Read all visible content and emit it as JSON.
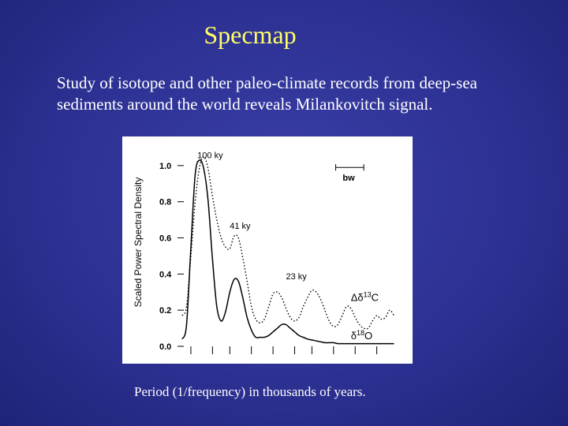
{
  "slide": {
    "title": "Specmap",
    "subtitle": "Study of isotope and other paleo-climate records from deep-sea sediments around the world reveals Milankovitch signal.",
    "x_caption": "Period (1/frequency) in thousands of years."
  },
  "chart_data": {
    "type": "line",
    "ylabel": "Scaled Power Spectral Density",
    "xlabel": "",
    "ylim": [
      0,
      1.1
    ],
    "xlim": [
      0,
      1
    ],
    "yticks": [
      0.0,
      0.2,
      0.4,
      0.6,
      0.8,
      1.0
    ],
    "ytick_labels": [
      "0.0",
      "0.2",
      "0.4",
      "0.6",
      "0.8",
      "1.0"
    ],
    "xticks": [
      0.04,
      0.14,
      0.22,
      0.32,
      0.42,
      0.52,
      0.6,
      0.7,
      0.8,
      0.9
    ],
    "annotations": [
      {
        "text": "100 ky",
        "x": 0.07,
        "y": 1.04
      },
      {
        "text": "41 ky",
        "x": 0.22,
        "y": 0.65
      },
      {
        "text": "23 ky",
        "x": 0.48,
        "y": 0.37
      },
      {
        "text": "bw",
        "x": 0.74,
        "y": 0.93
      }
    ],
    "bandwidth": {
      "label": "bw",
      "x0": 0.71,
      "x1": 0.84,
      "y": 0.99
    },
    "series": [
      {
        "name": "Δδ13C",
        "style": "dotted",
        "x": [
          0.0,
          0.02,
          0.04,
          0.06,
          0.08,
          0.1,
          0.12,
          0.14,
          0.16,
          0.18,
          0.2,
          0.22,
          0.24,
          0.26,
          0.28,
          0.3,
          0.32,
          0.34,
          0.36,
          0.38,
          0.4,
          0.42,
          0.44,
          0.46,
          0.48,
          0.5,
          0.52,
          0.54,
          0.56,
          0.58,
          0.6,
          0.62,
          0.64,
          0.66,
          0.68,
          0.7,
          0.72,
          0.74,
          0.76,
          0.78,
          0.8,
          0.82,
          0.84,
          0.86,
          0.88,
          0.9,
          0.92,
          0.94,
          0.96,
          0.98
        ],
        "y": [
          0.17,
          0.22,
          0.5,
          0.8,
          0.99,
          1.05,
          0.98,
          0.83,
          0.7,
          0.6,
          0.55,
          0.54,
          0.61,
          0.6,
          0.49,
          0.36,
          0.22,
          0.15,
          0.13,
          0.15,
          0.22,
          0.29,
          0.3,
          0.27,
          0.21,
          0.16,
          0.14,
          0.16,
          0.22,
          0.27,
          0.31,
          0.3,
          0.26,
          0.2,
          0.14,
          0.11,
          0.12,
          0.17,
          0.22,
          0.21,
          0.16,
          0.12,
          0.1,
          0.1,
          0.14,
          0.17,
          0.15,
          0.16,
          0.2,
          0.17
        ]
      },
      {
        "name": "δ18O",
        "style": "solid",
        "x": [
          0.0,
          0.02,
          0.04,
          0.06,
          0.08,
          0.1,
          0.12,
          0.14,
          0.16,
          0.18,
          0.2,
          0.22,
          0.24,
          0.26,
          0.28,
          0.3,
          0.32,
          0.34,
          0.36,
          0.38,
          0.4,
          0.42,
          0.44,
          0.46,
          0.48,
          0.5,
          0.52,
          0.54,
          0.56,
          0.58,
          0.6,
          0.62,
          0.64,
          0.66,
          0.68,
          0.7,
          0.72,
          0.74,
          0.76,
          0.78,
          0.8,
          0.82,
          0.84,
          0.86,
          0.88,
          0.9,
          0.92,
          0.94,
          0.96,
          0.98
        ],
        "y": [
          0.04,
          0.12,
          0.55,
          0.95,
          1.03,
          0.98,
          0.8,
          0.48,
          0.22,
          0.14,
          0.19,
          0.3,
          0.37,
          0.36,
          0.27,
          0.16,
          0.09,
          0.05,
          0.05,
          0.05,
          0.06,
          0.08,
          0.1,
          0.12,
          0.12,
          0.1,
          0.08,
          0.06,
          0.05,
          0.04,
          0.035,
          0.03,
          0.025,
          0.02,
          0.02,
          0.02,
          0.015,
          0.015,
          0.015,
          0.015,
          0.015,
          0.015,
          0.015,
          0.015,
          0.015,
          0.015,
          0.015,
          0.015,
          0.015,
          0.015
        ]
      }
    ],
    "series_labels": [
      {
        "series": 0,
        "text": "Δδ13C",
        "prefix": "Δδ",
        "sup": "13",
        "suffix": "C",
        "x": 0.78,
        "y": 0.25
      },
      {
        "series": 1,
        "text": "δ18O",
        "prefix": "δ",
        "sup": "18",
        "suffix": "O",
        "x": 0.78,
        "y": 0.04
      }
    ]
  }
}
